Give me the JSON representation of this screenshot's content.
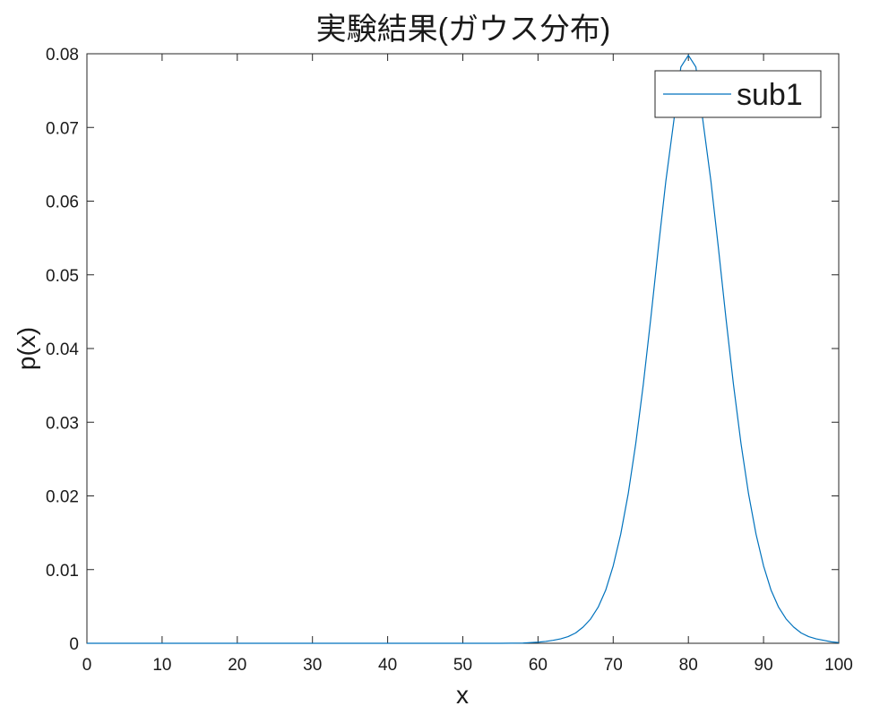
{
  "chart_data": {
    "type": "line",
    "title": "実験結果(ガウス分布)",
    "xlabel": "x",
    "ylabel": "p(x)",
    "xlim": [
      0,
      100
    ],
    "ylim": [
      0,
      0.08
    ],
    "x_ticks": [
      0,
      10,
      20,
      30,
      40,
      50,
      60,
      70,
      80,
      90,
      100
    ],
    "y_ticks": [
      0,
      0.01,
      0.02,
      0.03,
      0.04,
      0.05,
      0.06,
      0.07,
      0.08
    ],
    "x_tick_labels": [
      "0",
      "10",
      "20",
      "30",
      "40",
      "50",
      "60",
      "70",
      "80",
      "90",
      "100"
    ],
    "y_tick_labels": [
      "0",
      "0.01",
      "0.02",
      "0.03",
      "0.04",
      "0.05",
      "0.06",
      "0.07",
      "0.08"
    ],
    "grid": false,
    "legend": {
      "position": "top-right"
    },
    "series": [
      {
        "name": "sub1",
        "color": "#0072BD",
        "x": [
          0,
          5,
          10,
          15,
          20,
          25,
          30,
          35,
          40,
          45,
          50,
          55,
          58,
          60,
          61,
          62,
          63,
          64,
          65,
          66,
          67,
          68,
          69,
          70,
          71,
          72,
          73,
          74,
          75,
          76,
          77,
          78,
          79,
          80,
          81,
          82,
          83,
          84,
          85,
          86,
          87,
          88,
          89,
          90,
          91,
          92,
          93,
          94,
          95,
          96,
          97,
          98,
          99,
          100
        ],
        "y": [
          0,
          0,
          0,
          0,
          0,
          0,
          0,
          0,
          0,
          0,
          0,
          0,
          3e-05,
          0.00015,
          0.00025,
          0.0004,
          0.0006,
          0.0009,
          0.0014,
          0.0022,
          0.0033,
          0.0049,
          0.0072,
          0.0105,
          0.0148,
          0.0203,
          0.0271,
          0.0351,
          0.0441,
          0.0536,
          0.0627,
          0.0704,
          0.0782,
          0.0798,
          0.0782,
          0.0704,
          0.0627,
          0.0536,
          0.0441,
          0.0351,
          0.0271,
          0.0203,
          0.0148,
          0.0105,
          0.0072,
          0.0049,
          0.0033,
          0.0022,
          0.0014,
          0.0009,
          0.0006,
          0.0004,
          0.0002,
          0.0001
        ]
      }
    ]
  }
}
